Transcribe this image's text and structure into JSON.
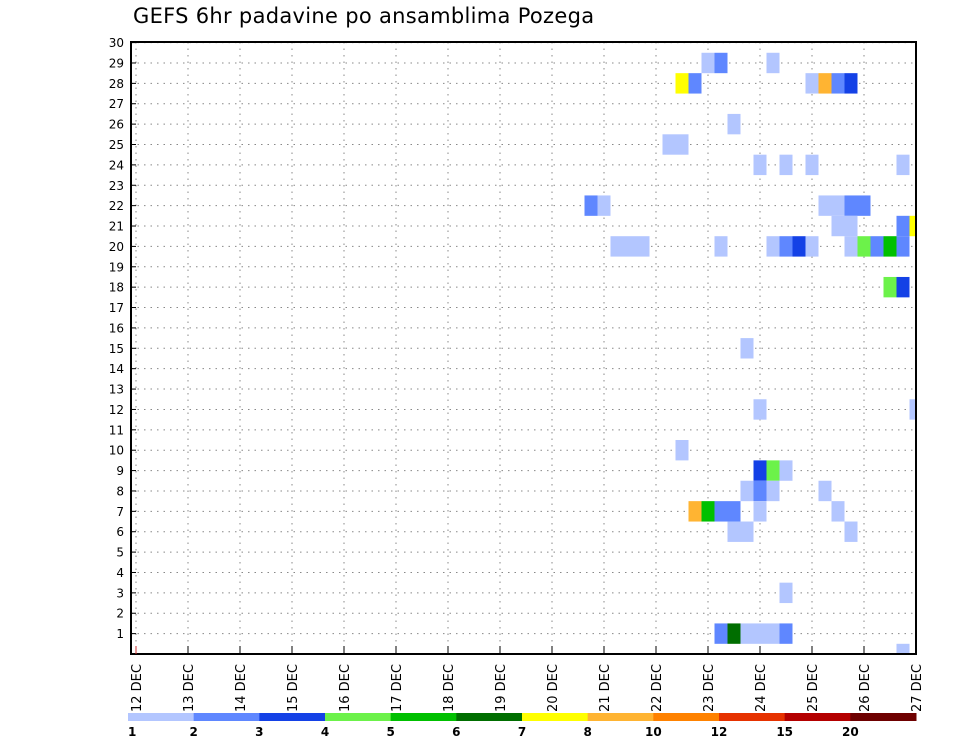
{
  "chart_data": {
    "type": "heatmap",
    "title": "GEFS 6hr padavine po ansamblima Pozega",
    "xlabel": "",
    "ylabel": "",
    "x_unit": "6-hour steps from 12 DEC 00Z",
    "x_ticks": [
      "12 DEC",
      "13 DEC",
      "14 DEC",
      "15 DEC",
      "16 DEC",
      "17 DEC",
      "18 DEC",
      "19 DEC",
      "20 DEC",
      "21 DEC",
      "22 DEC",
      "23 DEC",
      "24 DEC",
      "25 DEC",
      "26 DEC",
      "27 DEC"
    ],
    "y_ticks": [
      "1",
      "2",
      "3",
      "4",
      "5",
      "6",
      "7",
      "8",
      "9",
      "10",
      "11",
      "12",
      "13",
      "14",
      "15",
      "16",
      "17",
      "18",
      "19",
      "20",
      "21",
      "22",
      "23",
      "24",
      "25",
      "26",
      "27",
      "28",
      "29",
      "30"
    ],
    "xlim": [
      0,
      60
    ],
    "ylim": [
      0,
      30
    ],
    "grid": true,
    "legend": {
      "placement": "bottom",
      "levels": [
        "1",
        "2",
        "3",
        "4",
        "5",
        "6",
        "7",
        "8",
        "10",
        "12",
        "15",
        "20"
      ],
      "colors": [
        "#b3c6ff",
        "#5f87ff",
        "#1441e6",
        "#6cf24a",
        "#00c000",
        "#006e00",
        "#ffff00",
        "#ffb432",
        "#ff8200",
        "#e63200",
        "#b40000",
        "#6e0000"
      ]
    },
    "cells": [
      [
        44,
        29,
        1.5
      ],
      [
        45,
        29,
        2.5
      ],
      [
        49,
        29,
        1.5
      ],
      [
        42,
        28,
        7.5
      ],
      [
        43,
        28,
        2.5
      ],
      [
        52,
        28,
        1.5
      ],
      [
        53,
        28,
        9
      ],
      [
        54,
        28,
        2.5
      ],
      [
        55,
        28,
        3.5
      ],
      [
        46,
        26,
        1.5
      ],
      [
        41,
        25,
        1.5
      ],
      [
        42,
        25,
        1.5
      ],
      [
        48,
        24,
        1.5
      ],
      [
        50,
        24,
        1.5
      ],
      [
        52,
        24,
        1.5
      ],
      [
        59,
        24,
        1.5
      ],
      [
        35,
        22,
        2.5
      ],
      [
        36,
        22,
        1.5
      ],
      [
        53,
        22,
        1.5
      ],
      [
        54,
        22,
        1.5
      ],
      [
        55,
        22,
        2.5
      ],
      [
        56,
        22,
        2.5
      ],
      [
        54,
        21,
        1.5
      ],
      [
        55,
        21,
        1.5
      ],
      [
        59,
        21,
        2.5
      ],
      [
        60,
        21,
        7.5
      ],
      [
        37,
        20,
        1.5
      ],
      [
        38,
        20,
        1.5
      ],
      [
        39,
        20,
        1.5
      ],
      [
        45,
        20,
        1.5
      ],
      [
        49,
        20,
        1.5
      ],
      [
        50,
        20,
        2.5
      ],
      [
        51,
        20,
        3.5
      ],
      [
        52,
        20,
        1.5
      ],
      [
        55,
        20,
        1.5
      ],
      [
        56,
        20,
        4.5
      ],
      [
        57,
        20,
        2.5
      ],
      [
        58,
        20,
        5.5
      ],
      [
        59,
        20,
        2.5
      ],
      [
        58,
        18,
        4.5
      ],
      [
        59,
        18,
        3.5
      ],
      [
        47,
        15,
        1.5
      ],
      [
        48,
        12,
        1.5
      ],
      [
        60,
        12,
        1.5
      ],
      [
        42,
        10,
        1.5
      ],
      [
        48,
        9,
        3.5
      ],
      [
        49,
        9,
        4.5
      ],
      [
        50,
        9,
        1.5
      ],
      [
        47,
        8,
        1.5
      ],
      [
        48,
        8,
        2.5
      ],
      [
        49,
        8,
        1.5
      ],
      [
        53,
        8,
        1.5
      ],
      [
        43,
        7,
        9
      ],
      [
        44,
        7,
        5.5
      ],
      [
        45,
        7,
        2.5
      ],
      [
        46,
        7,
        2.5
      ],
      [
        48,
        7,
        1.5
      ],
      [
        54,
        7,
        1.5
      ],
      [
        46,
        6,
        1.5
      ],
      [
        47,
        6,
        1.5
      ],
      [
        55,
        6,
        1.5
      ],
      [
        50,
        3,
        1.5
      ],
      [
        45,
        1,
        2.5
      ],
      [
        46,
        1,
        6.5
      ],
      [
        47,
        1,
        1.5
      ],
      [
        48,
        1,
        1.5
      ],
      [
        49,
        1,
        1.5
      ],
      [
        50,
        1,
        2.5
      ],
      [
        59,
        0,
        1.5
      ]
    ]
  }
}
